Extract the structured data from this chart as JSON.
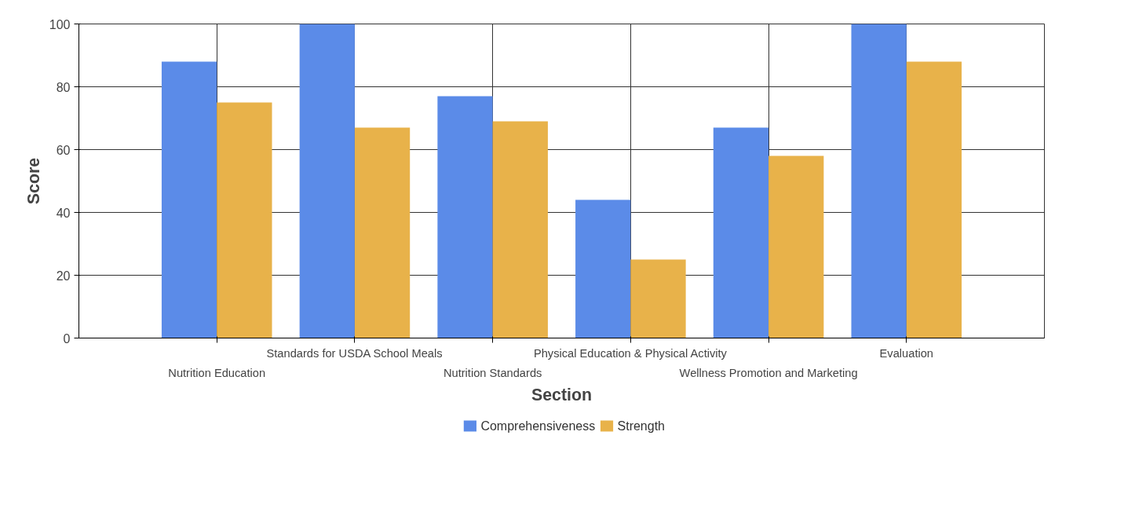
{
  "chart_data": {
    "type": "bar",
    "xlabel": "Section",
    "ylabel": "Score",
    "categories": [
      "Nutrition Education",
      "Standards for USDA School Meals",
      "Nutrition Standards",
      "Physical Education & Physical Activity",
      "Wellness Promotion and Marketing",
      "Evaluation"
    ],
    "series": [
      {
        "name": "Comprehensiveness",
        "color": "#5b8be8",
        "values": [
          88,
          100,
          77,
          44,
          67,
          100
        ]
      },
      {
        "name": "Strength",
        "color": "#e8b24a",
        "values": [
          75,
          67,
          69,
          25,
          58,
          88
        ]
      }
    ],
    "ylim": [
      0,
      100
    ],
    "yticks": [
      0,
      20,
      40,
      60,
      80,
      100
    ],
    "grid": true,
    "legend": "bottom"
  }
}
